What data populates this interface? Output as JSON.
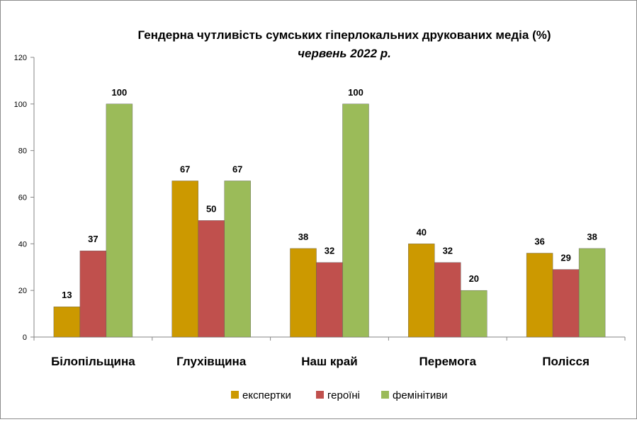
{
  "chart_data": {
    "type": "bar",
    "title": "Гендерна чутливість сумських гіперлокальних  друкованих  медіа (%)",
    "subtitle": "червень 2022 р.",
    "xlabel": "",
    "ylabel": "",
    "ylim": [
      0,
      120
    ],
    "yticks": [
      0,
      20,
      40,
      60,
      80,
      100,
      120
    ],
    "categories": [
      "Білопільщина",
      "Глухівщина",
      "Наш край",
      "Перемога",
      "Полісся"
    ],
    "series": [
      {
        "name": "експертки",
        "color": "#cc9900",
        "values": [
          13,
          67,
          38,
          40,
          36
        ]
      },
      {
        "name": "героїні",
        "color": "#c0504d",
        "values": [
          37,
          50,
          32,
          32,
          29
        ]
      },
      {
        "name": "фемінітиви",
        "color": "#9bbb59",
        "values": [
          100,
          67,
          100,
          20,
          38
        ]
      }
    ],
    "grid": false,
    "legend_position": "bottom"
  }
}
